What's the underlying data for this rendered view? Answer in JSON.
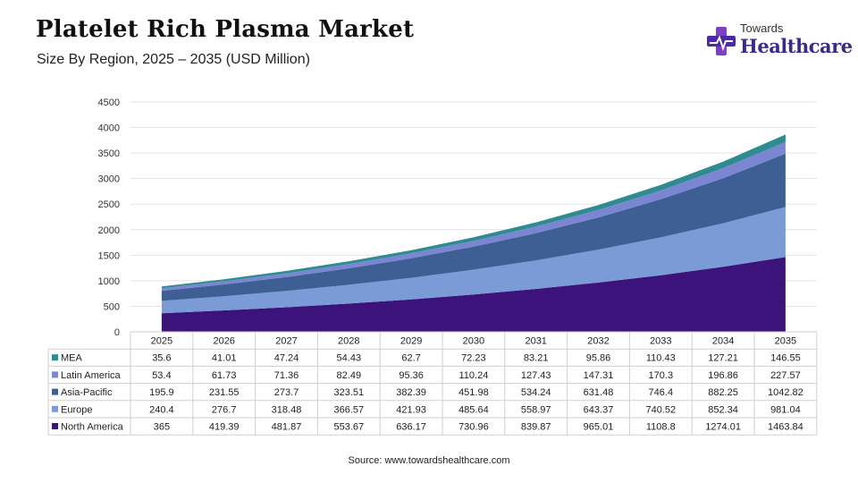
{
  "title": "Platelet Rich Plasma Market",
  "subtitle": "Size By Region, 2025 – 2035 (USD Million)",
  "logo": {
    "small": "Towards",
    "big": "Healthcare"
  },
  "source": "Source: www.towardshealthcare.com",
  "colors": {
    "MEA": "#2e8b8f",
    "Latin America": "#7b86d3",
    "Asia-Pacific": "#3e5f94",
    "Europe": "#7b9bd6",
    "North America": "#3b137a"
  },
  "chart_data": {
    "type": "area",
    "stacked": true,
    "x": [
      "2025",
      "2026",
      "2027",
      "2028",
      "2029",
      "2030",
      "2031",
      "2032",
      "2033",
      "2034",
      "2035"
    ],
    "yticks": [
      "0",
      "500",
      "1000",
      "1500",
      "2000",
      "2500",
      "3000",
      "3500",
      "4000",
      "4500"
    ],
    "ylim": [
      0,
      4500
    ],
    "series": [
      {
        "name": "North America",
        "values": [
          365,
          419.39,
          481.87,
          553.67,
          636.17,
          730.96,
          839.87,
          965.01,
          1108.8,
          1274.01,
          1463.84
        ],
        "labels": [
          "365",
          "419.39",
          "481.87",
          "553.67",
          "636.17",
          "730.96",
          "839.87",
          "965.01",
          "1108.8",
          "1274.01",
          "1463.84"
        ]
      },
      {
        "name": "Europe",
        "values": [
          240.4,
          276.7,
          318.48,
          366.57,
          421.93,
          485.64,
          558.97,
          643.37,
          740.52,
          852.34,
          981.04
        ],
        "labels": [
          "240.4",
          "276.7",
          "318.48",
          "366.57",
          "421.93",
          "485.64",
          "558.97",
          "643.37",
          "740.52",
          "852.34",
          "981.04"
        ]
      },
      {
        "name": "Asia-Pacific",
        "values": [
          195.9,
          231.55,
          273.7,
          323.51,
          382.39,
          451.98,
          534.24,
          631.48,
          746.4,
          882.25,
          1042.82
        ],
        "labels": [
          "195.9",
          "231.55",
          "273.7",
          "323.51",
          "382.39",
          "451.98",
          "534.24",
          "631.48",
          "746.4",
          "882.25",
          "1042.82"
        ]
      },
      {
        "name": "Latin America",
        "values": [
          53.4,
          61.73,
          71.36,
          82.49,
          95.36,
          110.24,
          127.43,
          147.31,
          170.3,
          196.86,
          227.57
        ],
        "labels": [
          "53.4",
          "61.73",
          "71.36",
          "82.49",
          "95.36",
          "110.24",
          "127.43",
          "147.31",
          "170.3",
          "196.86",
          "227.57"
        ]
      },
      {
        "name": "MEA",
        "values": [
          35.6,
          41.01,
          47.24,
          54.43,
          62.7,
          72.23,
          83.21,
          95.86,
          110.43,
          127.21,
          146.55
        ],
        "labels": [
          "35.6",
          "41.01",
          "47.24",
          "54.43",
          "62.7",
          "72.23",
          "83.21",
          "95.86",
          "110.43",
          "127.21",
          "146.55"
        ]
      }
    ],
    "table_row_order": [
      "MEA",
      "Latin America",
      "Asia-Pacific",
      "Europe",
      "North America"
    ]
  }
}
